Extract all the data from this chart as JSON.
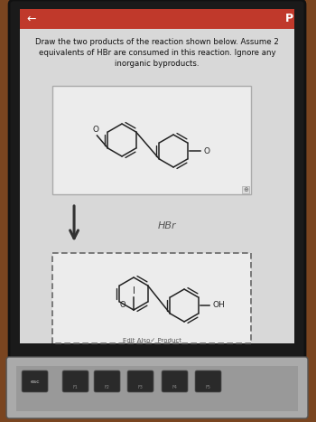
{
  "bg_outer": "#7a4520",
  "bezel_color": "#1a1a1a",
  "screen_color": "#d8d8d8",
  "top_bar_color": "#c0392b",
  "title_text": "Draw the two products of the reaction shown below. Assume 2\nequivalents of HBr are consumed in this reaction. Ignore any\ninorganic byproducts.",
  "reagent_text": "HBr",
  "bottom_label": "Edit Also✓ Product",
  "arrow_color": "#333333",
  "reactant_box_bg": "#ececec",
  "product_box_bg": "#ececec",
  "molecule_color": "#222222",
  "keyboard_bg": "#999999",
  "key_bg": "#333333",
  "key_labels": [
    "esc",
    "☀",
    "☀",
    "▀▄",
    "▒▒▒",
    "☀░"
  ],
  "key_sublabels": [
    "",
    "F1",
    "F2",
    "F3",
    "F4",
    "F5"
  ]
}
